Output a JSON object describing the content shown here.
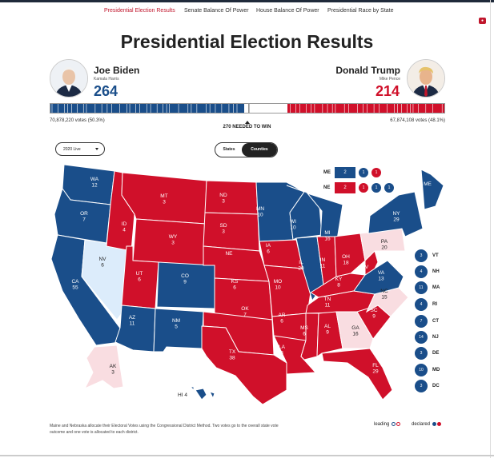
{
  "nav": {
    "items": [
      "Presidential Election Results",
      "Senate Balance Of Power",
      "House Balance Of Power",
      "Presidential Race by State"
    ],
    "active": 0
  },
  "title": "Presidential Election Results",
  "candidates": {
    "dem": {
      "name": "Joe Biden",
      "vp": "Kamala Harris",
      "electoral": "264",
      "popular": "70,878,220 votes (50.3%)",
      "color": "#1a4e8a"
    },
    "rep": {
      "name": "Donald Trump",
      "vp": "Mike Pence",
      "electoral": "214",
      "popular": "67,874,108 votes (48.1%)",
      "color": "#d0102a"
    }
  },
  "bar": {
    "total": 538,
    "dem": 264,
    "rep": 214
  },
  "needed_label": "270 NEEDED TO WIN",
  "filter": {
    "selected": "2020 Live"
  },
  "view_toggle": {
    "states": "States",
    "counties": "Counties",
    "active": "Counties"
  },
  "district_splits": {
    "me": {
      "state": "ME",
      "total": "2",
      "districts": [
        "1",
        "1"
      ],
      "colors": [
        "#1a4e8a",
        "#1a4e8a",
        "#d0102a"
      ]
    },
    "ne": {
      "state": "NE",
      "total": "2",
      "districts": [
        "1",
        "1",
        "1"
      ],
      "colors": [
        "#d0102a",
        "#d0102a",
        "#1a4e8a",
        "#1a4e8a"
      ]
    }
  },
  "states": [
    {
      "abbr": "WA",
      "ev": "12",
      "status": "declared-dem"
    },
    {
      "abbr": "OR",
      "ev": "7",
      "status": "declared-dem"
    },
    {
      "abbr": "CA",
      "ev": "55",
      "status": "declared-dem"
    },
    {
      "abbr": "NV",
      "ev": "6",
      "status": "leading-dem"
    },
    {
      "abbr": "ID",
      "ev": "4",
      "status": "declared-rep"
    },
    {
      "abbr": "MT",
      "ev": "3",
      "status": "declared-rep"
    },
    {
      "abbr": "WY",
      "ev": "3",
      "status": "declared-rep"
    },
    {
      "abbr": "UT",
      "ev": "6",
      "status": "declared-rep"
    },
    {
      "abbr": "AZ",
      "ev": "11",
      "status": "declared-dem"
    },
    {
      "abbr": "CO",
      "ev": "9",
      "status": "declared-dem"
    },
    {
      "abbr": "NM",
      "ev": "5",
      "status": "declared-dem"
    },
    {
      "abbr": "ND",
      "ev": "3",
      "status": "declared-rep"
    },
    {
      "abbr": "SD",
      "ev": "3",
      "status": "declared-rep"
    },
    {
      "abbr": "NE",
      "ev": "",
      "status": "declared-rep"
    },
    {
      "abbr": "KS",
      "ev": "6",
      "status": "declared-rep"
    },
    {
      "abbr": "OK",
      "ev": "7",
      "status": "declared-rep"
    },
    {
      "abbr": "TX",
      "ev": "38",
      "status": "declared-rep"
    },
    {
      "abbr": "MN",
      "ev": "10",
      "status": "declared-dem"
    },
    {
      "abbr": "IA",
      "ev": "6",
      "status": "declared-rep"
    },
    {
      "abbr": "MO",
      "ev": "10",
      "status": "declared-rep"
    },
    {
      "abbr": "AR",
      "ev": "6",
      "status": "declared-rep"
    },
    {
      "abbr": "LA",
      "ev": "8",
      "status": "declared-rep"
    },
    {
      "abbr": "WI",
      "ev": "10",
      "status": "declared-dem"
    },
    {
      "abbr": "IL",
      "ev": "20",
      "status": "declared-dem"
    },
    {
      "abbr": "MI",
      "ev": "16",
      "status": "declared-dem"
    },
    {
      "abbr": "IN",
      "ev": "11",
      "status": "declared-rep"
    },
    {
      "abbr": "OH",
      "ev": "18",
      "status": "declared-rep"
    },
    {
      "abbr": "KY",
      "ev": "8",
      "status": "declared-rep"
    },
    {
      "abbr": "TN",
      "ev": "11",
      "status": "declared-rep"
    },
    {
      "abbr": "MS",
      "ev": "6",
      "status": "declared-rep"
    },
    {
      "abbr": "AL",
      "ev": "9",
      "status": "declared-rep"
    },
    {
      "abbr": "GA",
      "ev": "16",
      "status": "leading-rep"
    },
    {
      "abbr": "FL",
      "ev": "29",
      "status": "declared-rep"
    },
    {
      "abbr": "SC",
      "ev": "9",
      "status": "declared-rep"
    },
    {
      "abbr": "NC",
      "ev": "15",
      "status": "leading-rep"
    },
    {
      "abbr": "VA",
      "ev": "13",
      "status": "declared-dem"
    },
    {
      "abbr": "WV",
      "ev": "5",
      "status": "declared-rep"
    },
    {
      "abbr": "PA",
      "ev": "20",
      "status": "leading-rep"
    },
    {
      "abbr": "NY",
      "ev": "29",
      "status": "declared-dem"
    },
    {
      "abbr": "ME",
      "ev": "",
      "status": "declared-dem"
    },
    {
      "abbr": "AK",
      "ev": "3",
      "status": "leading-rep"
    },
    {
      "abbr": "HI",
      "ev": "4",
      "status": "declared-dem"
    }
  ],
  "small_states": [
    {
      "abbr": "VT",
      "ev": "3"
    },
    {
      "abbr": "NH",
      "ev": "4"
    },
    {
      "abbr": "MA",
      "ev": "11"
    },
    {
      "abbr": "RI",
      "ev": "4"
    },
    {
      "abbr": "CT",
      "ev": "7"
    },
    {
      "abbr": "NJ",
      "ev": "14"
    },
    {
      "abbr": "DE",
      "ev": "3"
    },
    {
      "abbr": "MD",
      "ev": "10"
    },
    {
      "abbr": "DC",
      "ev": "3"
    }
  ],
  "colors": {
    "dem": "#1a4e8a",
    "rep": "#d0102a",
    "lead_dem": "#dcecfb",
    "lead_rep": "#f9dde1"
  },
  "footnote": "Maine and Nebraska allocate their Electoral Votes using the Congressional District Method. Two votes go to the overall state vote outcome and one vote is allocated to each district.",
  "legend": {
    "leading": "leading",
    "declared": "declared"
  }
}
